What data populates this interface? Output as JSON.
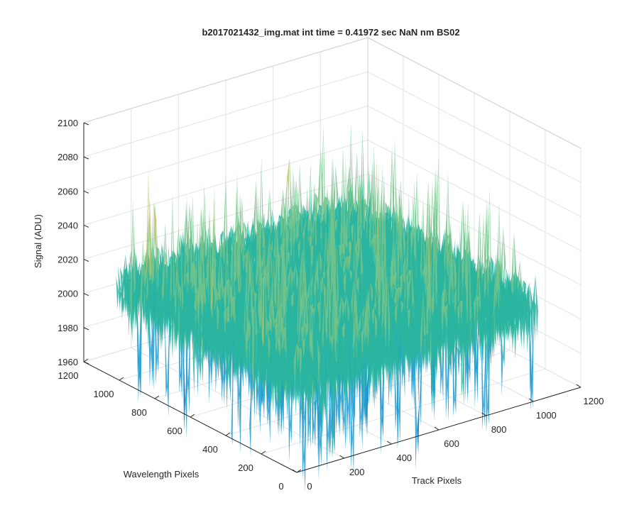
{
  "chart_data": {
    "type": "surface3d",
    "title": "b2017021432_img.mat int time = 0.41972 sec  NaN nm BS02",
    "xlabel": "Track Pixels",
    "ylabel": "Wavelength Pixels",
    "zlabel": "Signal (ADU)",
    "xlim": [
      0,
      1200
    ],
    "ylim": [
      0,
      1200
    ],
    "zlim": [
      1960,
      2100
    ],
    "xticks": [
      0,
      200,
      400,
      600,
      800,
      1000,
      1200
    ],
    "yticks": [
      0,
      200,
      400,
      600,
      800,
      1000,
      1200
    ],
    "zticks": [
      1960,
      1980,
      2000,
      2020,
      2040,
      2060,
      2080,
      2100
    ],
    "x_tick_labels": [
      "0",
      "200",
      "400",
      "600",
      "800",
      "1000",
      "1200"
    ],
    "y_tick_labels": [
      "0",
      "200",
      "400",
      "600",
      "800",
      "1000",
      "1200"
    ],
    "z_tick_labels": [
      "1960",
      "1980",
      "2000",
      "2020",
      "2040",
      "2060",
      "2080",
      "2100"
    ],
    "grid": true,
    "colormap": [
      "#0072bd",
      "#1f9bd1",
      "#2ab5a0",
      "#74c38b",
      "#c6c15a",
      "#e0c24a"
    ],
    "data_extent": {
      "x": [
        0,
        1024
      ],
      "y": [
        0,
        1024
      ]
    },
    "signal_mean": 2020,
    "signal_range": [
      1963,
      2095
    ]
  }
}
